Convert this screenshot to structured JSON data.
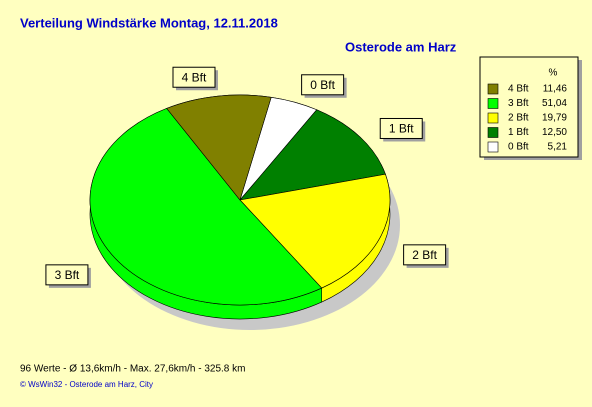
{
  "chart_data": {
    "type": "pie",
    "title": "Verteilung Windstärke  Montag, 12.11.2018",
    "subtitle": "Osterode am Harz",
    "categories": [
      "4 Bft",
      "3 Bft",
      "2 Bft",
      "1 Bft",
      "0 Bft"
    ],
    "values": [
      11.46,
      51.04,
      19.79,
      12.5,
      5.21
    ],
    "value_labels": [
      "11,46",
      "51,04",
      "19,79",
      "12,50",
      "5,21"
    ],
    "colors": [
      "#808000",
      "#00ff00",
      "#ffff00",
      "#008000",
      "#ffffff"
    ],
    "legend_title": "%",
    "legend": "top-right",
    "footer": "96 Werte   -   Ø 13,6km/h   -   Max. 27,6km/h   -   325.8 km",
    "credit": "© WsWin32  -  Osterode am Harz, City"
  }
}
